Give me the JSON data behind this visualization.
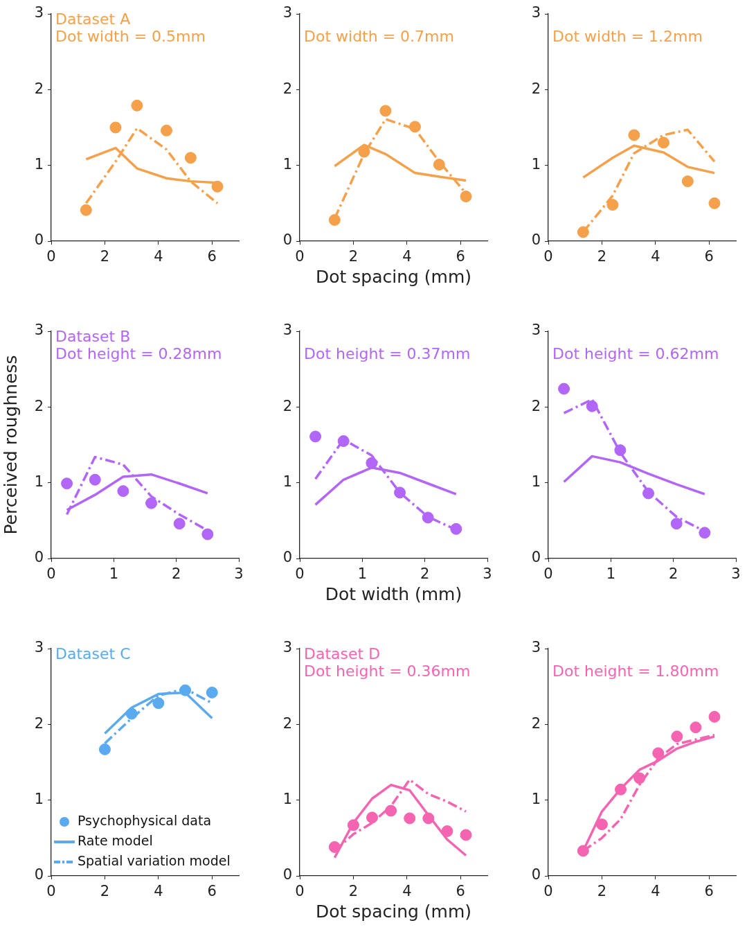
{
  "chart_data": [
    {
      "type": "line",
      "title": "Dataset A",
      "subtitle": "Dot width = 0.5mm",
      "xlim": [
        0,
        7
      ],
      "xticks": [
        0,
        2,
        4,
        6
      ],
      "ylim": [
        0,
        3
      ],
      "yticks": [
        0,
        1,
        2,
        3
      ],
      "x": [
        1.3,
        2.4,
        3.2,
        4.3,
        5.2,
        6.2
      ],
      "series": [
        {
          "type": "scatter",
          "marker": "circle",
          "color": "#f5a04a",
          "values": [
            0.41,
            1.5,
            1.79,
            1.46,
            1.1,
            0.72
          ]
        },
        {
          "type": "line",
          "marker": "none",
          "line_style": "solid",
          "color": "#f5a04a",
          "values": [
            1.08,
            1.23,
            0.96,
            0.83,
            0.79,
            0.77
          ]
        },
        {
          "type": "line",
          "marker": "none",
          "line_style": "dashed",
          "color": "#f5a04a",
          "values": [
            0.5,
            1.05,
            1.49,
            1.21,
            0.79,
            0.5
          ]
        }
      ]
    },
    {
      "type": "line",
      "subtitle": "Dot width = 0.7mm",
      "xlabel": "Dot spacing (mm)",
      "xlim": [
        0,
        7
      ],
      "xticks": [
        0,
        2,
        4,
        6
      ],
      "ylim": [
        0,
        3
      ],
      "yticks": [
        0,
        1,
        2,
        3
      ],
      "x": [
        1.3,
        2.4,
        3.2,
        4.3,
        5.2,
        6.2
      ],
      "series": [
        {
          "type": "scatter",
          "marker": "circle",
          "color": "#f5a04a",
          "values": [
            0.28,
            1.18,
            1.72,
            1.51,
            1.01,
            0.59
          ]
        },
        {
          "type": "line",
          "marker": "none",
          "line_style": "solid",
          "color": "#f5a04a",
          "values": [
            0.99,
            1.27,
            1.15,
            0.9,
            0.85,
            0.8
          ]
        },
        {
          "type": "line",
          "marker": "none",
          "line_style": "dashed",
          "color": "#f5a04a",
          "values": [
            0.3,
            1.15,
            1.61,
            1.48,
            1.05,
            0.63
          ]
        }
      ]
    },
    {
      "type": "line",
      "subtitle": "Dot width = 1.2mm",
      "xlim": [
        0,
        7
      ],
      "xticks": [
        0,
        2,
        4,
        6
      ],
      "ylim": [
        0,
        3
      ],
      "yticks": [
        0,
        1,
        2,
        3
      ],
      "x": [
        1.3,
        2.4,
        3.2,
        4.3,
        5.2,
        6.2
      ],
      "series": [
        {
          "type": "scatter",
          "marker": "circle",
          "color": "#f5a04a",
          "values": [
            0.12,
            0.48,
            1.4,
            1.3,
            0.79,
            0.5
          ]
        },
        {
          "type": "line",
          "marker": "none",
          "line_style": "solid",
          "color": "#f5a04a",
          "values": [
            0.84,
            1.1,
            1.26,
            1.17,
            0.98,
            0.9
          ]
        },
        {
          "type": "line",
          "marker": "none",
          "line_style": "dashed",
          "color": "#f5a04a",
          "values": [
            0.12,
            0.6,
            1.16,
            1.4,
            1.47,
            1.05
          ]
        }
      ]
    },
    {
      "type": "line",
      "title": "Dataset B",
      "subtitle": "Dot height = 0.28mm",
      "ylabel": "Perceived roughness",
      "xlim": [
        0,
        3
      ],
      "xticks": [
        0,
        1,
        2,
        3
      ],
      "ylim": [
        0,
        3
      ],
      "yticks": [
        0,
        1,
        2,
        3
      ],
      "x": [
        0.25,
        0.7,
        1.15,
        1.6,
        2.05,
        2.5
      ],
      "series": [
        {
          "type": "scatter",
          "marker": "circle",
          "color": "#b266f7",
          "values": [
            0.99,
            1.04,
            0.89,
            0.73,
            0.46,
            0.32
          ]
        },
        {
          "type": "line",
          "marker": "none",
          "line_style": "solid",
          "color": "#b266f7",
          "values": [
            0.64,
            0.84,
            1.08,
            1.11,
            0.99,
            0.86
          ]
        },
        {
          "type": "line",
          "marker": "none",
          "line_style": "dashed",
          "color": "#b266f7",
          "values": [
            0.58,
            1.34,
            1.24,
            0.82,
            0.58,
            0.37
          ]
        }
      ]
    },
    {
      "type": "line",
      "subtitle": "Dot height = 0.37mm",
      "xlabel": "Dot width (mm)",
      "xlim": [
        0,
        3
      ],
      "xticks": [
        0,
        1,
        2,
        3
      ],
      "ylim": [
        0,
        3
      ],
      "yticks": [
        0,
        1,
        2,
        3
      ],
      "x": [
        0.25,
        0.7,
        1.15,
        1.6,
        2.05,
        2.5
      ],
      "series": [
        {
          "type": "scatter",
          "marker": "circle",
          "color": "#b266f7",
          "values": [
            1.61,
            1.55,
            1.26,
            0.87,
            0.54,
            0.39
          ]
        },
        {
          "type": "line",
          "marker": "none",
          "line_style": "solid",
          "color": "#b266f7",
          "values": [
            0.71,
            1.04,
            1.2,
            1.13,
            0.99,
            0.85
          ]
        },
        {
          "type": "line",
          "marker": "none",
          "line_style": "dashed",
          "color": "#b266f7",
          "values": [
            1.05,
            1.57,
            1.36,
            0.87,
            0.55,
            0.38
          ]
        }
      ]
    },
    {
      "type": "line",
      "subtitle": "Dot height = 0.62mm",
      "xlim": [
        0,
        3
      ],
      "xticks": [
        0,
        1,
        2,
        3
      ],
      "ylim": [
        0,
        3
      ],
      "yticks": [
        0,
        1,
        2,
        3
      ],
      "x": [
        0.25,
        0.7,
        1.15,
        1.6,
        2.05,
        2.5
      ],
      "series": [
        {
          "type": "scatter",
          "marker": "circle",
          "color": "#b266f7",
          "values": [
            2.24,
            2.01,
            1.43,
            0.86,
            0.46,
            0.34
          ]
        },
        {
          "type": "line",
          "marker": "none",
          "line_style": "solid",
          "color": "#b266f7",
          "values": [
            1.01,
            1.35,
            1.27,
            1.12,
            0.98,
            0.85
          ]
        },
        {
          "type": "line",
          "marker": "none",
          "line_style": "dashed",
          "color": "#b266f7",
          "values": [
            1.92,
            2.1,
            1.4,
            0.88,
            0.55,
            0.36
          ]
        }
      ]
    },
    {
      "type": "line",
      "title": "Dataset C",
      "legend": "bottom left",
      "xlim": [
        0,
        7
      ],
      "xticks": [
        0,
        2,
        4,
        6
      ],
      "ylim": [
        0,
        3
      ],
      "yticks": [
        0,
        1,
        2,
        3
      ],
      "x": [
        2,
        3,
        4,
        5,
        6
      ],
      "series": [
        {
          "type": "scatter",
          "name": "Psychophysical data",
          "marker": "circle",
          "color": "#5aaaf0",
          "values": [
            1.67,
            2.14,
            2.28,
            2.45,
            2.42
          ]
        },
        {
          "type": "line",
          "name": "Rate model",
          "marker": "none",
          "line_style": "solid",
          "color": "#5aaaf0",
          "values": [
            1.88,
            2.22,
            2.4,
            2.42,
            2.08
          ]
        },
        {
          "type": "line",
          "name": "Spatial variation model",
          "marker": "none",
          "line_style": "dashed",
          "color": "#5aaaf0",
          "values": [
            1.75,
            2.08,
            2.38,
            2.47,
            2.28
          ]
        }
      ]
    },
    {
      "type": "line",
      "title": "Dataset D",
      "subtitle": "Dot height = 0.36mm",
      "xlabel": "Dot spacing (mm)",
      "xlim": [
        0,
        7
      ],
      "xticks": [
        0,
        2,
        4,
        6
      ],
      "ylim": [
        0,
        3
      ],
      "yticks": [
        0,
        1,
        2,
        3
      ],
      "x": [
        1.3,
        2,
        2.7,
        3.4,
        4.1,
        4.8,
        5.5,
        6.2
      ],
      "series": [
        {
          "type": "scatter",
          "marker": "circle",
          "color": "#f564b0",
          "values": [
            0.38,
            0.67,
            0.77,
            0.86,
            0.76,
            0.76,
            0.59,
            0.54
          ]
        },
        {
          "type": "line",
          "marker": "none",
          "line_style": "solid",
          "color": "#f564b0",
          "values": [
            0.24,
            0.7,
            1.02,
            1.2,
            1.13,
            0.8,
            0.48,
            0.27
          ]
        },
        {
          "type": "line",
          "marker": "none",
          "line_style": "dashed",
          "color": "#f564b0",
          "values": [
            0.33,
            0.55,
            0.7,
            0.92,
            1.27,
            1.08,
            0.98,
            0.85
          ]
        }
      ]
    },
    {
      "type": "line",
      "subtitle": "Dot height = 1.80mm",
      "xlim": [
        0,
        7
      ],
      "xticks": [
        0,
        2,
        4,
        6
      ],
      "ylim": [
        0,
        3
      ],
      "yticks": [
        0,
        1,
        2,
        3
      ],
      "x": [
        1.3,
        2,
        2.7,
        3.4,
        4.1,
        4.8,
        5.5,
        6.2
      ],
      "series": [
        {
          "type": "scatter",
          "marker": "circle",
          "color": "#f564b0",
          "values": [
            0.33,
            0.68,
            1.14,
            1.29,
            1.62,
            1.84,
            1.96,
            2.1
          ]
        },
        {
          "type": "line",
          "marker": "none",
          "line_style": "solid",
          "color": "#f564b0",
          "values": [
            0.33,
            0.85,
            1.15,
            1.4,
            1.52,
            1.68,
            1.77,
            1.84
          ]
        },
        {
          "type": "line",
          "marker": "none",
          "line_style": "dashed",
          "color": "#f564b0",
          "values": [
            0.33,
            0.5,
            0.75,
            1.2,
            1.55,
            1.74,
            1.8,
            1.86
          ]
        }
      ]
    }
  ]
}
